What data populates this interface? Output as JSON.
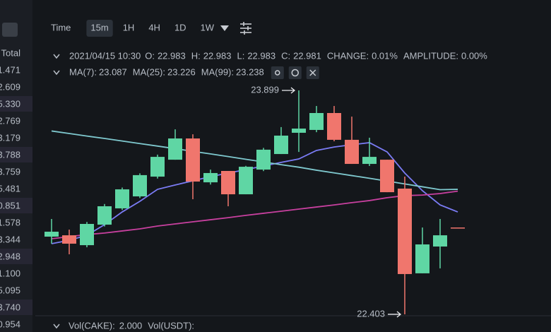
{
  "toolbar": {
    "intervals": [
      "Time",
      "15m",
      "1H",
      "4H",
      "1D",
      "1W"
    ],
    "active": 1
  },
  "info": {
    "date": "2021/04/15 10:30",
    "fields": [
      {
        "label": "O:",
        "value": "22.983"
      },
      {
        "label": "H:",
        "value": "22.983"
      },
      {
        "label": "L:",
        "value": "22.983"
      },
      {
        "label": "C:",
        "value": "22.981"
      },
      {
        "label": "CHANGE:",
        "value": "0.01%"
      },
      {
        "label": "AMPLITUDE:",
        "value": "0.00%"
      }
    ]
  },
  "ma_legend": [
    {
      "label": "MA(7):",
      "value": "23.087",
      "color": "#7b7cf5"
    },
    {
      "label": "MA(25):",
      "value": "23.226",
      "color": "#e05bd0"
    },
    {
      "label": "MA(99):",
      "value": "23.238",
      "color": "#e6e8ea"
    }
  ],
  "left_column": {
    "header": "Total",
    "values": [
      "1.471",
      "2.609",
      "5.330",
      "2.769",
      "3.179",
      "3.788",
      "3.759",
      "5.481",
      "0.851",
      "1.578",
      "3.344",
      "2.948",
      "1.100",
      "5.095",
      "3.740",
      "0.954"
    ]
  },
  "chart_data": {
    "type": "candlestick",
    "ylim": [
      22.332,
      23.984
    ],
    "up_color": "#5fd6a4",
    "down_color": "#f0766d",
    "candles": [
      {
        "open": 22.922,
        "high": 23.04,
        "low": 22.875,
        "close": 22.955
      },
      {
        "open": 22.931,
        "high": 22.969,
        "low": 22.804,
        "close": 22.875
      },
      {
        "open": 22.865,
        "high": 23.02,
        "low": 22.851,
        "close": 23.007
      },
      {
        "open": 23.002,
        "high": 23.14,
        "low": 22.99,
        "close": 23.125
      },
      {
        "open": 23.111,
        "high": 23.25,
        "low": 23.1,
        "close": 23.238
      },
      {
        "open": 23.191,
        "high": 23.345,
        "low": 23.18,
        "close": 23.333
      },
      {
        "open": 23.323,
        "high": 23.47,
        "low": 23.31,
        "close": 23.455
      },
      {
        "open": 23.436,
        "high": 23.639,
        "low": 23.436,
        "close": 23.578
      },
      {
        "open": 23.578,
        "high": 23.606,
        "low": 23.172,
        "close": 23.29
      },
      {
        "open": 23.285,
        "high": 23.37,
        "low": 23.27,
        "close": 23.347
      },
      {
        "open": 23.361,
        "high": 23.361,
        "low": 23.125,
        "close": 23.205
      },
      {
        "open": 23.205,
        "high": 23.395,
        "low": 23.205,
        "close": 23.389
      },
      {
        "open": 23.37,
        "high": 23.515,
        "low": 23.36,
        "close": 23.503
      },
      {
        "open": 23.474,
        "high": 23.654,
        "low": 23.474,
        "close": 23.597
      },
      {
        "open": 23.616,
        "high": 23.899,
        "low": 23.488,
        "close": 23.644
      },
      {
        "open": 23.635,
        "high": 23.795,
        "low": 23.62,
        "close": 23.748
      },
      {
        "open": 23.748,
        "high": 23.795,
        "low": 23.559,
        "close": 23.569
      },
      {
        "open": 23.569,
        "high": 23.724,
        "low": 23.408,
        "close": 23.408
      },
      {
        "open": 23.408,
        "high": 23.583,
        "low": 23.394,
        "close": 23.455
      },
      {
        "open": 23.436,
        "high": 23.436,
        "low": 23.219,
        "close": 23.219
      },
      {
        "open": 23.243,
        "high": 23.323,
        "low": 22.403,
        "close": 22.672
      },
      {
        "open": 22.677,
        "high": 22.983,
        "low": 22.677,
        "close": 22.87
      },
      {
        "open": 22.856,
        "high": 23.04,
        "low": 22.71,
        "close": 22.931
      },
      {
        "open": 22.983,
        "high": 22.983,
        "low": 22.983,
        "close": 22.981
      }
    ],
    "series": [
      {
        "name": "MA(7)",
        "color": "#7b7cf5",
        "values": [
          22.875,
          22.898,
          22.931,
          23.002,
          23.087,
          23.158,
          23.238,
          23.267,
          23.295,
          23.323,
          23.347,
          23.37,
          23.394,
          23.418,
          23.441,
          23.498,
          23.521,
          23.536,
          23.55,
          23.488,
          23.347,
          23.229,
          23.134,
          23.087
        ]
      },
      {
        "name": "MA(25)",
        "color": "#c8409f",
        "values": [
          22.908,
          22.922,
          22.936,
          22.946,
          22.96,
          22.974,
          22.993,
          23.007,
          23.021,
          23.035,
          23.049,
          23.064,
          23.078,
          23.092,
          23.106,
          23.12,
          23.134,
          23.149,
          23.163,
          23.182,
          23.196,
          23.2,
          23.21,
          23.226
        ]
      },
      {
        "name": "MA(99)",
        "color": "#7fc9cf",
        "values": [
          23.628,
          23.611,
          23.594,
          23.578,
          23.561,
          23.544,
          23.527,
          23.51,
          23.492,
          23.475,
          23.457,
          23.439,
          23.421,
          23.403,
          23.386,
          23.366,
          23.348,
          23.33,
          23.312,
          23.293,
          23.274,
          23.255,
          23.236,
          23.238
        ]
      }
    ],
    "annotations": [
      "chart_data.candles.14.high",
      "chart_data.candles.20.low"
    ]
  },
  "volume": {
    "label": "Vol(CAKE):",
    "value": "2.000",
    "label2": "Vol(USDT):"
  }
}
